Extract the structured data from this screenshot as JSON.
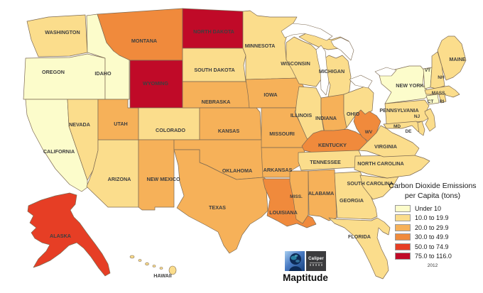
{
  "legend": {
    "title_line1": "Carbon Dioxide Emissions",
    "title_line2": "per Capita (tons)",
    "year": "2012",
    "categories": [
      {
        "label": "Under 10",
        "color": "#FCFCCB"
      },
      {
        "label": "10.0 to 19.9",
        "color": "#FBDD8C"
      },
      {
        "label": "20.0 to 29.9",
        "color": "#F6B159"
      },
      {
        "label": "30.0 to 49.9",
        "color": "#F08A3C"
      },
      {
        "label": "50.0 to 74.9",
        "color": "#E63E25"
      },
      {
        "label": "75.0 to 116.0",
        "color": "#C00A28"
      }
    ]
  },
  "branding": {
    "caliper_label": "Caliper",
    "product_name": "Maptitude"
  },
  "map": {
    "border_color": "#7d6a52",
    "label_color": "#3f3f3f",
    "states": [
      {
        "id": "WA",
        "label": "WASHINGTON",
        "category": 1
      },
      {
        "id": "OR",
        "label": "OREGON",
        "category": 0
      },
      {
        "id": "CA",
        "label": "CALIFORNIA",
        "category": 0
      },
      {
        "id": "ID",
        "label": "IDAHO",
        "category": 0
      },
      {
        "id": "NV",
        "label": "NEVADA",
        "category": 1
      },
      {
        "id": "AZ",
        "label": "ARIZONA",
        "category": 1
      },
      {
        "id": "UT",
        "label": "UTAH",
        "category": 2
      },
      {
        "id": "MT",
        "label": "MONTANA",
        "category": 3
      },
      {
        "id": "WY",
        "label": "WYOMING",
        "category": 5
      },
      {
        "id": "CO",
        "label": "COLORADO",
        "category": 1
      },
      {
        "id": "NM",
        "label": "NEW MEXICO",
        "category": 2
      },
      {
        "id": "ND",
        "label": "NORTH DAKOTA",
        "category": 5
      },
      {
        "id": "SD",
        "label": "SOUTH DAKOTA",
        "category": 1
      },
      {
        "id": "NE",
        "label": "NEBRASKA",
        "category": 2
      },
      {
        "id": "KS",
        "label": "KANSAS",
        "category": 2
      },
      {
        "id": "OK",
        "label": "OKLAHOMA",
        "category": 2
      },
      {
        "id": "TX",
        "label": "TEXAS",
        "category": 2
      },
      {
        "id": "MN",
        "label": "MINNESOTA",
        "category": 1
      },
      {
        "id": "IA",
        "label": "IOWA",
        "category": 2
      },
      {
        "id": "MO",
        "label": "MISSOURI",
        "category": 2
      },
      {
        "id": "AR",
        "label": "ARKANSAS",
        "category": 2
      },
      {
        "id": "LA",
        "label": "LOUISIANA",
        "category": 3
      },
      {
        "id": "WI",
        "label": "WISCONSIN",
        "category": 1
      },
      {
        "id": "MI",
        "label": "MICHIGAN",
        "category": 1
      },
      {
        "id": "IL",
        "label": "ILLINOIS",
        "category": 1
      },
      {
        "id": "IN",
        "label": "INDIANA",
        "category": 2
      },
      {
        "id": "OH",
        "label": "OHIO",
        "category": 1
      },
      {
        "id": "KY",
        "label": "KENTUCKY",
        "category": 3
      },
      {
        "id": "TN",
        "label": "TENNESSEE",
        "category": 1
      },
      {
        "id": "MS",
        "label": "MISS.",
        "category": 2
      },
      {
        "id": "AL",
        "label": "ALABAMA",
        "category": 2
      },
      {
        "id": "GA",
        "label": "GEORGIA",
        "category": 1
      },
      {
        "id": "FL",
        "label": "FLORIDA",
        "category": 1
      },
      {
        "id": "SC",
        "label": "SOUTH CAROLINA",
        "category": 1
      },
      {
        "id": "NC",
        "label": "NORTH CAROLINA",
        "category": 1
      },
      {
        "id": "VA",
        "label": "VIRGINIA",
        "category": 1
      },
      {
        "id": "WV",
        "label": "WV",
        "category": 3
      },
      {
        "id": "PA",
        "label": "PENNSYLVANIA",
        "category": 1
      },
      {
        "id": "NY",
        "label": "NEW YORK",
        "category": 0
      },
      {
        "id": "ME",
        "label": "MAINE",
        "category": 1
      },
      {
        "id": "VT",
        "label": "VT",
        "category": 0
      },
      {
        "id": "NH",
        "label": "NH",
        "category": 1
      },
      {
        "id": "MA",
        "label": "MASS.",
        "category": 1
      },
      {
        "id": "CT",
        "label": "CT",
        "category": 0
      },
      {
        "id": "RI",
        "label": "RI",
        "category": 1
      },
      {
        "id": "NJ",
        "label": "NJ",
        "category": 1
      },
      {
        "id": "MD",
        "label": "MD",
        "category": 1
      },
      {
        "id": "DE",
        "label": "DE",
        "category": 1
      },
      {
        "id": "AK",
        "label": "ALASKA",
        "category": 4
      },
      {
        "id": "HI",
        "label": "HAWAII",
        "category": 1
      }
    ]
  }
}
